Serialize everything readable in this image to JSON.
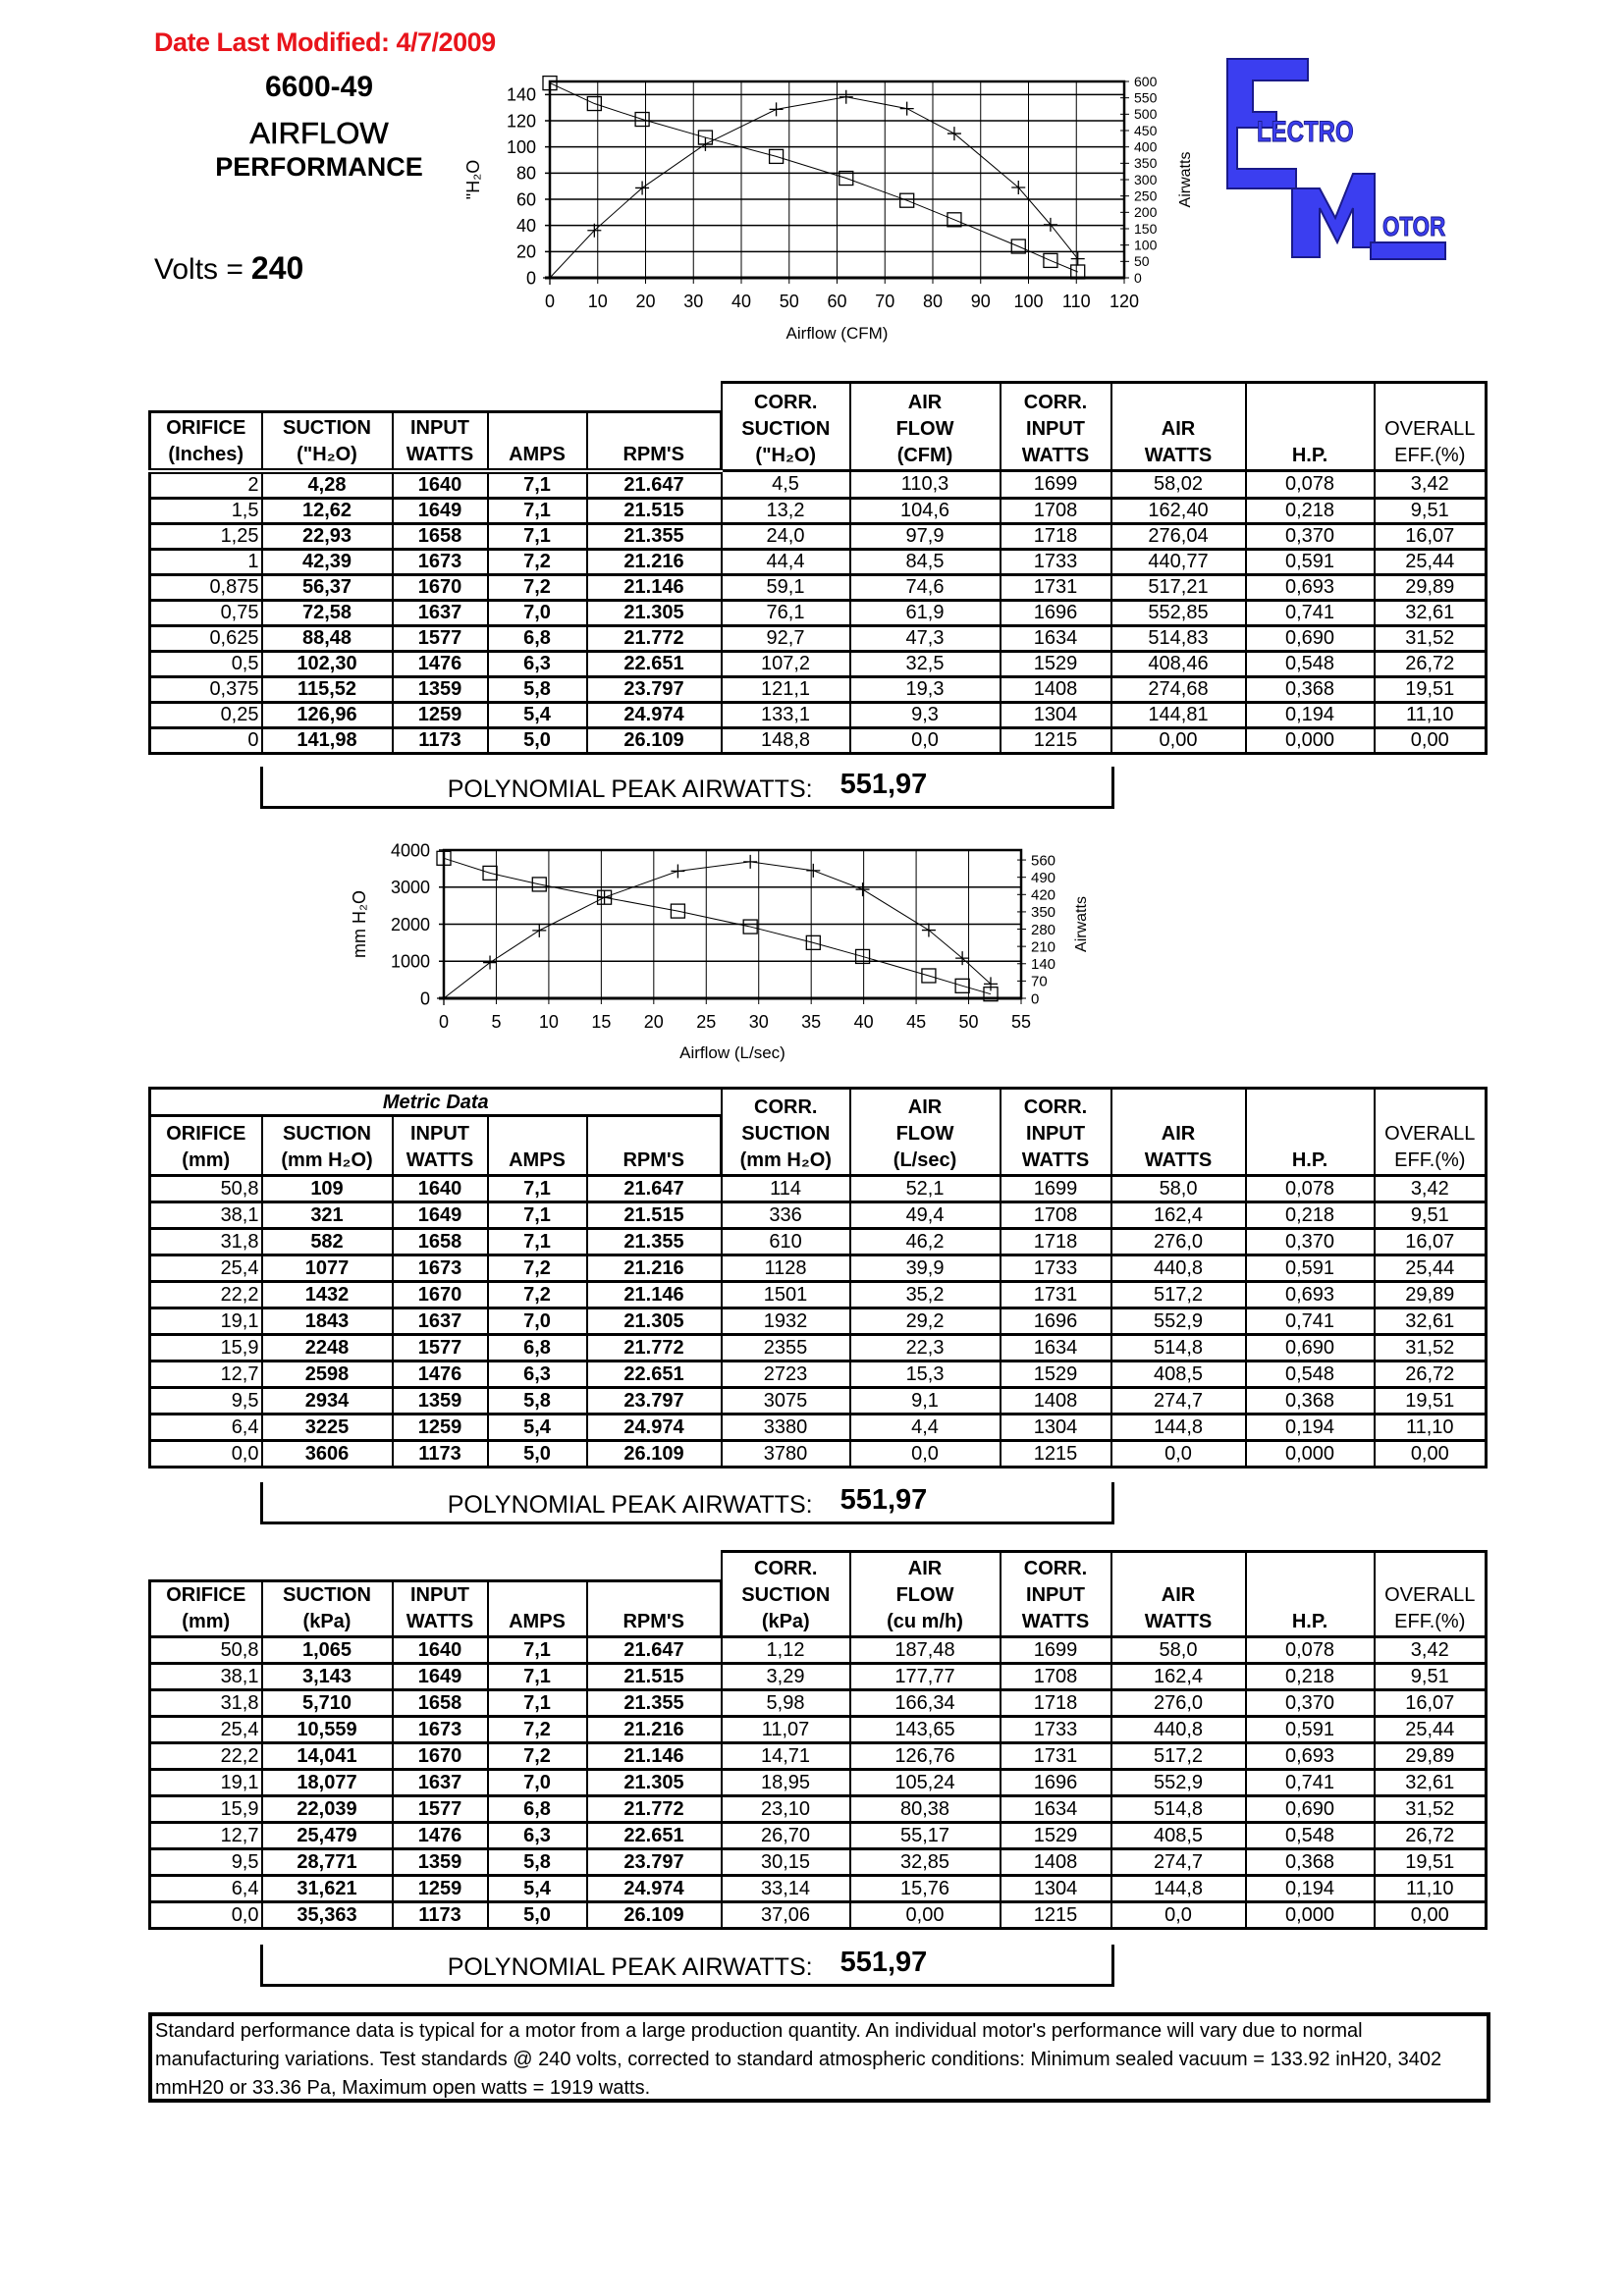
{
  "header": {
    "date_label": "Date Last Modified:  4/7/2009",
    "model": "6600-49",
    "title_line1": "AIRFLOW",
    "title_line2": "PERFORMANCE",
    "volts_label": "Volts =",
    "volts_value": "240"
  },
  "logo": {
    "text": "ELECTRO MOTOR",
    "color": "#3b3ef0"
  },
  "chart_data": [
    {
      "type": "line",
      "xlabel": "Airflow (CFM)",
      "ylabel": "\"H₂O",
      "y2label": "Airwatts",
      "xlim": [
        0,
        120
      ],
      "ylim": [
        0,
        150
      ],
      "y2lim": [
        0,
        600
      ],
      "xticks": [
        0,
        10,
        20,
        30,
        40,
        50,
        60,
        70,
        80,
        90,
        100,
        110,
        120
      ],
      "yticks": [
        0,
        20,
        40,
        60,
        80,
        100,
        120,
        140
      ],
      "y2ticks": [
        0,
        50,
        100,
        150,
        200,
        250,
        300,
        350,
        400,
        450,
        500,
        550,
        600
      ],
      "grid": true,
      "series": [
        {
          "axis": "left",
          "marker": "square",
          "x": [
            110.3,
            104.6,
            97.9,
            84.5,
            74.6,
            61.9,
            47.3,
            32.5,
            19.3,
            9.3,
            0.0
          ],
          "y": [
            4.5,
            13.2,
            24.0,
            44.4,
            59.1,
            76.1,
            92.7,
            107.2,
            121.1,
            133.1,
            148.8
          ]
        },
        {
          "axis": "right",
          "marker": "plus",
          "x": [
            110.3,
            104.6,
            97.9,
            84.5,
            74.6,
            61.9,
            47.3,
            32.5,
            19.3,
            9.3,
            0.0
          ],
          "y": [
            58.02,
            162.4,
            276.04,
            440.77,
            517.21,
            552.85,
            514.83,
            408.46,
            274.68,
            144.81,
            0.0
          ]
        }
      ]
    },
    {
      "type": "line",
      "xlabel": "Airflow (L/sec)",
      "ylabel": "mm H₂O",
      "y2label": "Airwatts",
      "xlim": [
        0,
        55
      ],
      "ylim": [
        0,
        4000
      ],
      "y2lim": [
        0,
        600
      ],
      "xticks": [
        0,
        5,
        10,
        15,
        20,
        25,
        30,
        35,
        40,
        45,
        50,
        55
      ],
      "yticks": [
        0,
        1000,
        2000,
        3000,
        4000
      ],
      "y2ticks": [
        0,
        70,
        140,
        210,
        280,
        350,
        420,
        490,
        560
      ],
      "grid": true,
      "series": [
        {
          "axis": "left",
          "marker": "square",
          "x": [
            52.1,
            49.4,
            46.2,
            39.9,
            35.2,
            29.2,
            22.3,
            15.3,
            9.1,
            4.4,
            0.0
          ],
          "y": [
            114,
            336,
            610,
            1128,
            1501,
            1932,
            2355,
            2723,
            3075,
            3380,
            3780
          ]
        },
        {
          "axis": "right",
          "marker": "plus",
          "x": [
            52.1,
            49.4,
            46.2,
            39.9,
            35.2,
            29.2,
            22.3,
            15.3,
            9.1,
            4.4,
            0.0
          ],
          "y": [
            58.0,
            162.4,
            276.0,
            440.8,
            517.2,
            552.9,
            514.8,
            408.5,
            274.7,
            144.8,
            0.0
          ]
        }
      ]
    }
  ],
  "tables": [
    {
      "caption": "",
      "headers": [
        [
          "ORIFICE",
          "(Inches)"
        ],
        [
          "SUCTION",
          "(\"H₂O)"
        ],
        [
          "INPUT",
          "WATTS"
        ],
        [
          "AMPS"
        ],
        [
          "RPM'S"
        ],
        [
          "CORR.",
          "SUCTION",
          "(\"H₂O)"
        ],
        [
          "AIR",
          "FLOW",
          "(CFM)"
        ],
        [
          "CORR.",
          "INPUT",
          "WATTS"
        ],
        [
          "AIR",
          "WATTS"
        ],
        [
          "H.P."
        ],
        [
          "OVERALL",
          "EFF.(%)"
        ]
      ],
      "rows": [
        [
          "2",
          "4,28",
          "1640",
          "7,1",
          "21.647",
          "4,5",
          "110,3",
          "1699",
          "58,02",
          "0,078",
          "3,42"
        ],
        [
          "1,5",
          "12,62",
          "1649",
          "7,1",
          "21.515",
          "13,2",
          "104,6",
          "1708",
          "162,40",
          "0,218",
          "9,51"
        ],
        [
          "1,25",
          "22,93",
          "1658",
          "7,1",
          "21.355",
          "24,0",
          "97,9",
          "1718",
          "276,04",
          "0,370",
          "16,07"
        ],
        [
          "1",
          "42,39",
          "1673",
          "7,2",
          "21.216",
          "44,4",
          "84,5",
          "1733",
          "440,77",
          "0,591",
          "25,44"
        ],
        [
          "0,875",
          "56,37",
          "1670",
          "7,2",
          "21.146",
          "59,1",
          "74,6",
          "1731",
          "517,21",
          "0,693",
          "29,89"
        ],
        [
          "0,75",
          "72,58",
          "1637",
          "7,0",
          "21.305",
          "76,1",
          "61,9",
          "1696",
          "552,85",
          "0,741",
          "32,61"
        ],
        [
          "0,625",
          "88,48",
          "1577",
          "6,8",
          "21.772",
          "92,7",
          "47,3",
          "1634",
          "514,83",
          "0,690",
          "31,52"
        ],
        [
          "0,5",
          "102,30",
          "1476",
          "6,3",
          "22.651",
          "107,2",
          "32,5",
          "1529",
          "408,46",
          "0,548",
          "26,72"
        ],
        [
          "0,375",
          "115,52",
          "1359",
          "5,8",
          "23.797",
          "121,1",
          "19,3",
          "1408",
          "274,68",
          "0,368",
          "19,51"
        ],
        [
          "0,25",
          "126,96",
          "1259",
          "5,4",
          "24.974",
          "133,1",
          "9,3",
          "1304",
          "144,81",
          "0,194",
          "11,10"
        ],
        [
          "0",
          "141,98",
          "1173",
          "5,0",
          "26.109",
          "148,8",
          "0,0",
          "1215",
          "0,00",
          "0,000",
          "0,00"
        ]
      ],
      "peak_label": "POLYNOMIAL PEAK AIRWATTS:",
      "peak_value": "551,97"
    },
    {
      "caption": "Metric Data",
      "headers": [
        [
          "ORIFICE",
          "(mm)"
        ],
        [
          "SUCTION",
          "(mm H₂O)"
        ],
        [
          "INPUT",
          "WATTS"
        ],
        [
          "AMPS"
        ],
        [
          "RPM'S"
        ],
        [
          "CORR.",
          "SUCTION",
          "(mm H₂O)"
        ],
        [
          "AIR",
          "FLOW",
          "(L/sec)"
        ],
        [
          "CORR.",
          "INPUT",
          "WATTS"
        ],
        [
          "AIR",
          "WATTS"
        ],
        [
          "H.P."
        ],
        [
          "OVERALL",
          "EFF.(%)"
        ]
      ],
      "rows": [
        [
          "50,8",
          "109",
          "1640",
          "7,1",
          "21.647",
          "114",
          "52,1",
          "1699",
          "58,0",
          "0,078",
          "3,42"
        ],
        [
          "38,1",
          "321",
          "1649",
          "7,1",
          "21.515",
          "336",
          "49,4",
          "1708",
          "162,4",
          "0,218",
          "9,51"
        ],
        [
          "31,8",
          "582",
          "1658",
          "7,1",
          "21.355",
          "610",
          "46,2",
          "1718",
          "276,0",
          "0,370",
          "16,07"
        ],
        [
          "25,4",
          "1077",
          "1673",
          "7,2",
          "21.216",
          "1128",
          "39,9",
          "1733",
          "440,8",
          "0,591",
          "25,44"
        ],
        [
          "22,2",
          "1432",
          "1670",
          "7,2",
          "21.146",
          "1501",
          "35,2",
          "1731",
          "517,2",
          "0,693",
          "29,89"
        ],
        [
          "19,1",
          "1843",
          "1637",
          "7,0",
          "21.305",
          "1932",
          "29,2",
          "1696",
          "552,9",
          "0,741",
          "32,61"
        ],
        [
          "15,9",
          "2248",
          "1577",
          "6,8",
          "21.772",
          "2355",
          "22,3",
          "1634",
          "514,8",
          "0,690",
          "31,52"
        ],
        [
          "12,7",
          "2598",
          "1476",
          "6,3",
          "22.651",
          "2723",
          "15,3",
          "1529",
          "408,5",
          "0,548",
          "26,72"
        ],
        [
          "9,5",
          "2934",
          "1359",
          "5,8",
          "23.797",
          "3075",
          "9,1",
          "1408",
          "274,7",
          "0,368",
          "19,51"
        ],
        [
          "6,4",
          "3225",
          "1259",
          "5,4",
          "24.974",
          "3380",
          "4,4",
          "1304",
          "144,8",
          "0,194",
          "11,10"
        ],
        [
          "0,0",
          "3606",
          "1173",
          "5,0",
          "26.109",
          "3780",
          "0,0",
          "1215",
          "0,0",
          "0,000",
          "0,00"
        ]
      ],
      "peak_label": "POLYNOMIAL PEAK AIRWATTS:",
      "peak_value": "551,97"
    },
    {
      "caption": "",
      "headers": [
        [
          "ORIFICE",
          "(mm)"
        ],
        [
          "SUCTION",
          "(kPa)"
        ],
        [
          "INPUT",
          "WATTS"
        ],
        [
          "AMPS"
        ],
        [
          "RPM'S"
        ],
        [
          "CORR.",
          "SUCTION",
          "(kPa)"
        ],
        [
          "AIR",
          "FLOW",
          "(cu m/h)"
        ],
        [
          "CORR.",
          "INPUT",
          "WATTS"
        ],
        [
          "AIR",
          "WATTS"
        ],
        [
          "H.P."
        ],
        [
          "OVERALL",
          "EFF.(%)"
        ]
      ],
      "rows": [
        [
          "50,8",
          "1,065",
          "1640",
          "7,1",
          "21.647",
          "1,12",
          "187,48",
          "1699",
          "58,0",
          "0,078",
          "3,42"
        ],
        [
          "38,1",
          "3,143",
          "1649",
          "7,1",
          "21.515",
          "3,29",
          "177,77",
          "1708",
          "162,4",
          "0,218",
          "9,51"
        ],
        [
          "31,8",
          "5,710",
          "1658",
          "7,1",
          "21.355",
          "5,98",
          "166,34",
          "1718",
          "276,0",
          "0,370",
          "16,07"
        ],
        [
          "25,4",
          "10,559",
          "1673",
          "7,2",
          "21.216",
          "11,07",
          "143,65",
          "1733",
          "440,8",
          "0,591",
          "25,44"
        ],
        [
          "22,2",
          "14,041",
          "1670",
          "7,2",
          "21.146",
          "14,71",
          "126,76",
          "1731",
          "517,2",
          "0,693",
          "29,89"
        ],
        [
          "19,1",
          "18,077",
          "1637",
          "7,0",
          "21.305",
          "18,95",
          "105,24",
          "1696",
          "552,9",
          "0,741",
          "32,61"
        ],
        [
          "15,9",
          "22,039",
          "1577",
          "6,8",
          "21.772",
          "23,10",
          "80,38",
          "1634",
          "514,8",
          "0,690",
          "31,52"
        ],
        [
          "12,7",
          "25,479",
          "1476",
          "6,3",
          "22.651",
          "26,70",
          "55,17",
          "1529",
          "408,5",
          "0,548",
          "26,72"
        ],
        [
          "9,5",
          "28,771",
          "1359",
          "5,8",
          "23.797",
          "30,15",
          "32,85",
          "1408",
          "274,7",
          "0,368",
          "19,51"
        ],
        [
          "6,4",
          "31,621",
          "1259",
          "5,4",
          "24.974",
          "33,14",
          "15,76",
          "1304",
          "144,8",
          "0,194",
          "11,10"
        ],
        [
          "0,0",
          "35,363",
          "1173",
          "5,0",
          "26.109",
          "37,06",
          "0,00",
          "1215",
          "0,0",
          "0,000",
          "0,00"
        ]
      ],
      "peak_label": "POLYNOMIAL PEAK AIRWATTS:",
      "peak_value": "551,97"
    }
  ],
  "footer": {
    "note": "Standard performance data is typical for a motor from a large production quantity.  An individual motor's performance will vary due to normal manufacturing variations.  Test standards @ 240 volts, corrected to standard atmospheric conditions:  Minimum sealed vacuum = 133.92 inH20, 3402 mmH20 or 33.36 Pa, Maximum open watts = 1919 watts."
  },
  "colors": {
    "date": "#e8141b",
    "logo_blue": "#3b3ef0"
  }
}
